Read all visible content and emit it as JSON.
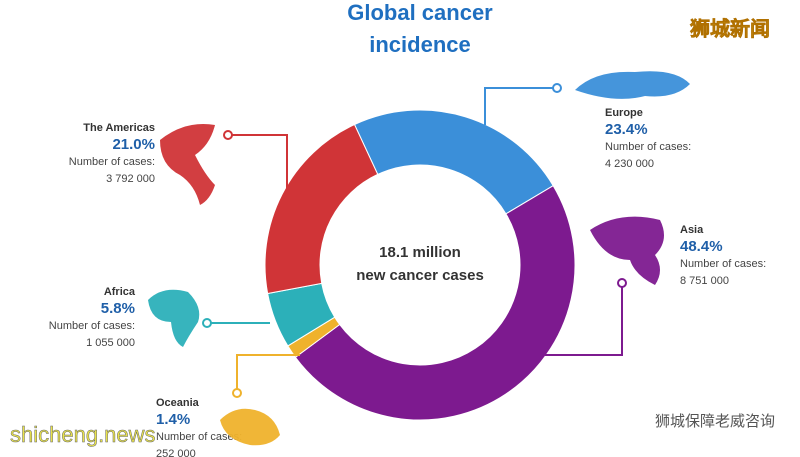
{
  "chart_data": {
    "type": "donut",
    "title": [
      "Global cancer",
      "incidence"
    ],
    "center_label": [
      "18.1 million",
      "new cancer cases"
    ],
    "cases_label": "Number of cases:",
    "categories": [
      "Europe",
      "Asia",
      "Oceania",
      "Africa",
      "The Americas"
    ],
    "values": [
      23.4,
      48.4,
      1.4,
      5.8,
      21.0
    ],
    "value_labels": [
      "23.4%",
      "48.4%",
      "1.4%",
      "5.8%",
      "21.0%"
    ],
    "case_counts": [
      "4 230 000",
      "8 751 000",
      "252 000",
      "1 055 000",
      "3 792 000"
    ],
    "colors": [
      "#3b8fd9",
      "#7d1a8f",
      "#efb22c",
      "#2cb0b9",
      "#d03437"
    ]
  },
  "watermarks": {
    "top_right": "狮城新闻",
    "bottom_left": "shicheng.news",
    "bottom_right": "狮城保障老威咨询"
  }
}
